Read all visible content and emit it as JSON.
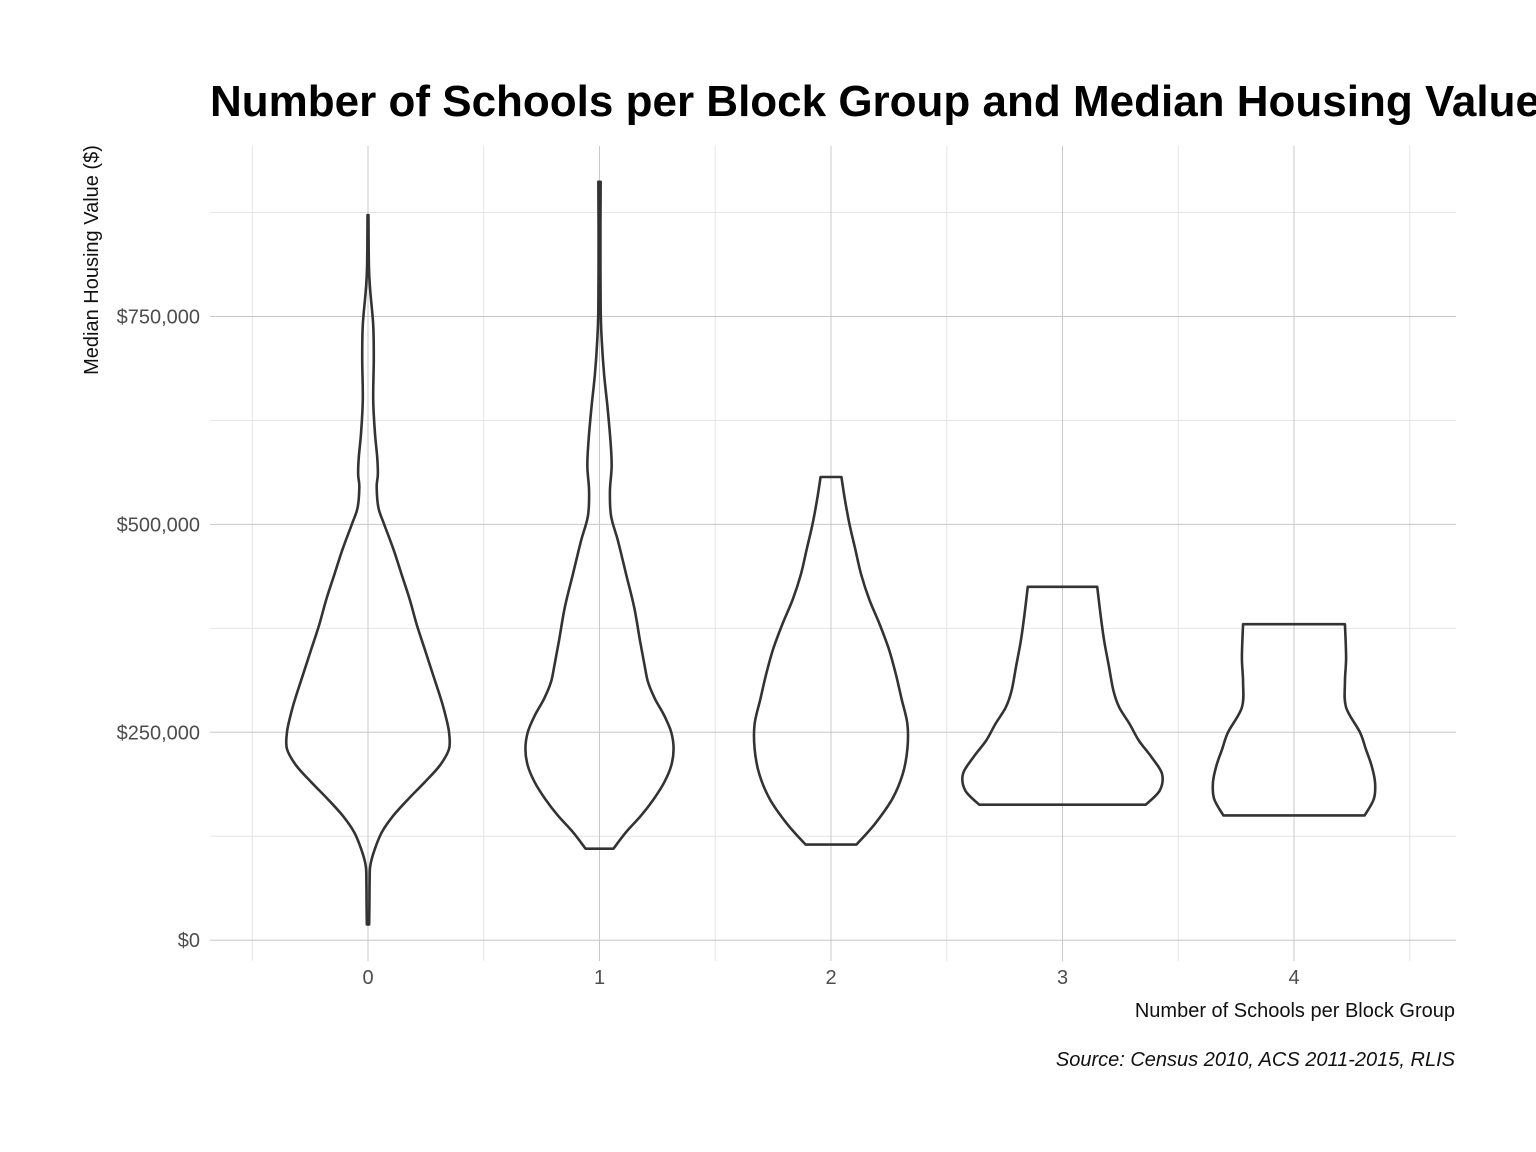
{
  "chart_data": {
    "type": "violin",
    "title": "Number of Schools per Block Group and Median Housing Value",
    "xlabel": "Number of Schools per Block Group",
    "ylabel": "Median Housing Value ($)",
    "caption": "Source: Census 2010, ACS 2011-2015, RLIS",
    "categories": [
      "0",
      "1",
      "2",
      "3",
      "4"
    ],
    "y_ticks": [
      {
        "value": 0,
        "label": "$0"
      },
      {
        "value": 250000,
        "label": "$250,000"
      },
      {
        "value": 500000,
        "label": "$500,000"
      },
      {
        "value": 750000,
        "label": "$750,000"
      }
    ],
    "ylim": [
      -25000,
      955000
    ],
    "grid": true,
    "stroke_color": "#333333",
    "violins": [
      {
        "category": "0",
        "min": 19000,
        "max": 872000,
        "half_width": [
          [
            19000,
            0.01
          ],
          [
            40000,
            0.012
          ],
          [
            70000,
            0.014
          ],
          [
            90000,
            0.02
          ],
          [
            110000,
            0.06
          ],
          [
            130000,
            0.12
          ],
          [
            150000,
            0.22
          ],
          [
            170000,
            0.35
          ],
          [
            190000,
            0.49
          ],
          [
            210000,
            0.62
          ],
          [
            230000,
            0.7
          ],
          [
            250000,
            0.7
          ],
          [
            270000,
            0.67
          ],
          [
            290000,
            0.63
          ],
          [
            320000,
            0.56
          ],
          [
            350000,
            0.49
          ],
          [
            380000,
            0.42
          ],
          [
            410000,
            0.36
          ],
          [
            440000,
            0.29
          ],
          [
            470000,
            0.22
          ],
          [
            500000,
            0.14
          ],
          [
            520000,
            0.09
          ],
          [
            545000,
            0.075
          ],
          [
            560000,
            0.085
          ],
          [
            580000,
            0.08
          ],
          [
            610000,
            0.06
          ],
          [
            650000,
            0.045
          ],
          [
            700000,
            0.05
          ],
          [
            740000,
            0.045
          ],
          [
            780000,
            0.02
          ],
          [
            810000,
            0.008
          ],
          [
            872000,
            0.004
          ]
        ]
      },
      {
        "category": "1",
        "min": 110000,
        "max": 912000,
        "half_width": [
          [
            110000,
            0.12
          ],
          [
            130000,
            0.23
          ],
          [
            150000,
            0.36
          ],
          [
            170000,
            0.47
          ],
          [
            190000,
            0.56
          ],
          [
            210000,
            0.62
          ],
          [
            230000,
            0.64
          ],
          [
            250000,
            0.62
          ],
          [
            270000,
            0.56
          ],
          [
            290000,
            0.48
          ],
          [
            310000,
            0.42
          ],
          [
            330000,
            0.39
          ],
          [
            360000,
            0.35
          ],
          [
            400000,
            0.3
          ],
          [
            440000,
            0.23
          ],
          [
            480000,
            0.16
          ],
          [
            510000,
            0.1
          ],
          [
            540000,
            0.09
          ],
          [
            570000,
            0.105
          ],
          [
            600000,
            0.095
          ],
          [
            640000,
            0.07
          ],
          [
            680000,
            0.04
          ],
          [
            720000,
            0.02
          ],
          [
            760000,
            0.01
          ],
          [
            850000,
            0.008
          ],
          [
            912000,
            0.01
          ]
        ]
      },
      {
        "category": "2",
        "min": 115000,
        "max": 557000,
        "half_width": [
          [
            115000,
            0.22
          ],
          [
            140000,
            0.38
          ],
          [
            170000,
            0.53
          ],
          [
            200000,
            0.62
          ],
          [
            230000,
            0.66
          ],
          [
            260000,
            0.66
          ],
          [
            290000,
            0.61
          ],
          [
            320000,
            0.56
          ],
          [
            350000,
            0.5
          ],
          [
            380000,
            0.42
          ],
          [
            410000,
            0.33
          ],
          [
            440000,
            0.26
          ],
          [
            470000,
            0.21
          ],
          [
            500000,
            0.16
          ],
          [
            530000,
            0.12
          ],
          [
            557000,
            0.09
          ]
        ]
      },
      {
        "category": "3",
        "min": 163000,
        "max": 425000,
        "half_width": [
          [
            163000,
            0.72
          ],
          [
            180000,
            0.84
          ],
          [
            200000,
            0.86
          ],
          [
            220000,
            0.77
          ],
          [
            240000,
            0.66
          ],
          [
            260000,
            0.58
          ],
          [
            280000,
            0.49
          ],
          [
            300000,
            0.44
          ],
          [
            330000,
            0.4
          ],
          [
            360000,
            0.36
          ],
          [
            390000,
            0.33
          ],
          [
            425000,
            0.3
          ]
        ]
      },
      {
        "category": "4",
        "min": 150000,
        "max": 380000,
        "half_width": [
          [
            150000,
            0.61
          ],
          [
            170000,
            0.69
          ],
          [
            190000,
            0.7
          ],
          [
            210000,
            0.67
          ],
          [
            230000,
            0.62
          ],
          [
            250000,
            0.57
          ],
          [
            280000,
            0.45
          ],
          [
            310000,
            0.44
          ],
          [
            340000,
            0.45
          ],
          [
            380000,
            0.44
          ]
        ]
      }
    ]
  }
}
